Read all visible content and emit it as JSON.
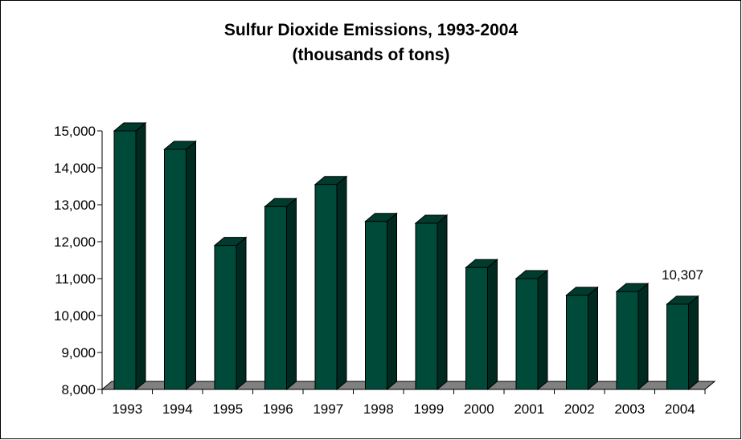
{
  "chart_data": {
    "type": "bar",
    "title": "Sulfur Dioxide Emissions, 1993-2004",
    "subtitle": "(thousands of tons)",
    "xlabel": "",
    "ylabel": "",
    "categories": [
      "1993",
      "1994",
      "1995",
      "1996",
      "1997",
      "1998",
      "1999",
      "2000",
      "2001",
      "2002",
      "2003",
      "2004"
    ],
    "values": [
      15000,
      14500,
      11900,
      12950,
      13550,
      12550,
      12500,
      11300,
      11000,
      10550,
      10650,
      10307
    ],
    "ylim": [
      8000,
      15000
    ],
    "yticks": [
      8000,
      9000,
      10000,
      11000,
      12000,
      13000,
      14000,
      15000
    ],
    "ytick_labels": [
      "8,000",
      "9,000",
      "10,000",
      "11,000",
      "12,000",
      "13,000",
      "14,000",
      "15,000"
    ],
    "data_labels": [
      {
        "category": "2004",
        "text": "10,307"
      }
    ],
    "grid": false,
    "style": "3d-column",
    "bar_color": "#004a3a",
    "floor_color": "#808080"
  }
}
